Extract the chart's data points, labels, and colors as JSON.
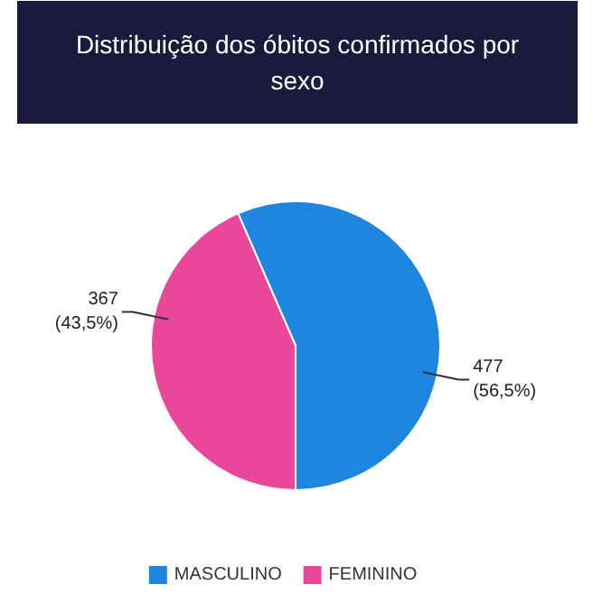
{
  "chart_data": {
    "type": "pie",
    "title": "Distribuição dos óbitos confirmados por sexo",
    "categories": [
      "MASCULINO",
      "FEMININO"
    ],
    "values": [
      477,
      367
    ],
    "colors": [
      "#1f86df",
      "#e8479a"
    ],
    "value_labels": [
      "477\n(56,5%)",
      "367\n(43,5%)"
    ],
    "legend": "bottom"
  }
}
